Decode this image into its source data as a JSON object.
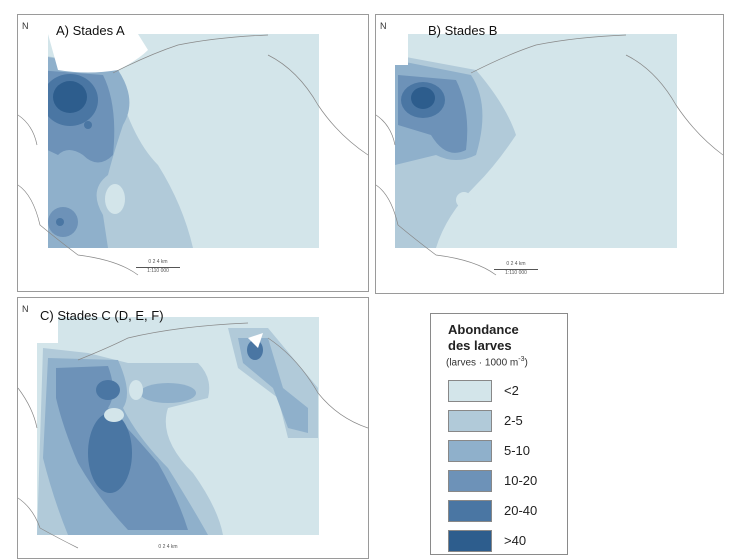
{
  "panels": [
    {
      "title": "A) Stades A",
      "north": "N",
      "scale": {
        "ticks": "0  2  4 km",
        "ratio": "1:110 000"
      }
    },
    {
      "title": "B) Stades B",
      "north": "N",
      "scale": {
        "ticks": "0  2  4 km",
        "ratio": "1:110 000"
      }
    },
    {
      "title": "C) Stades C (D, E, F)",
      "north": "N",
      "scale": {
        "ticks": "0  2  4 km"
      }
    }
  ],
  "legend": {
    "title_line1": "Abondance",
    "title_line2": "des larves",
    "unit": "(larves · 1000 m",
    "unit_exp": "-3",
    "unit_close": ")",
    "classes": [
      {
        "label": "<2",
        "color": "#d3e5ea"
      },
      {
        "label": "2-5",
        "color": "#b1cad9"
      },
      {
        "label": "5-10",
        "color": "#8fb0cb"
      },
      {
        "label": "10-20",
        "color": "#6d92b8"
      },
      {
        "label": "20-40",
        "color": "#4a76a3"
      },
      {
        "label": ">40",
        "color": "#2d5d8d"
      }
    ]
  }
}
